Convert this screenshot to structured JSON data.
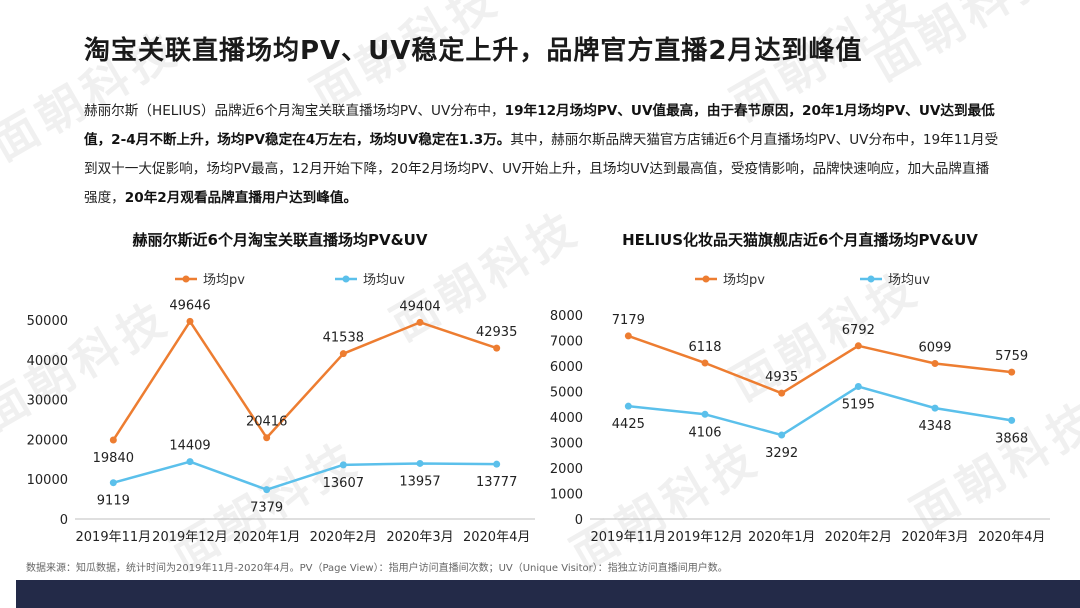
{
  "title": "淘宝关联直播场均PV、UV稳定上升，品牌官方直播2月达到峰值",
  "description": {
    "p1": "赫丽尔斯（HELIUS）品牌近6个月淘宝关联直播场均PV、UV分布中，",
    "b1": "19年12月场均PV、UV值最高，由于春节原因，20年1月场均PV、UV达到最低值，2-4月不断上升，场均PV稳定在4万左右，场均UV稳定在1.3万。",
    "p2": "其中，赫丽尔斯品牌天猫官方店铺近6个月直播场均PV、UV分布中，19年11月受到双十一大促影响，场均PV最高，12月开始下降，20年2月场均PV、UV开始上升，且场均UV达到最高值，受疫情影响，品牌快速响应，加大品牌直播强度，",
    "b2": "20年2月观看品牌直播用户达到峰值。"
  },
  "watermark": "面朝科技",
  "source": "数据来源：知瓜数据，统计时间为2019年11月-2020年4月。PV（Page View）：指用户访问直播间次数；UV（Unique Visitor）：指独立访问直播间用户数。",
  "colors": {
    "pv": "#ED7D31",
    "uv": "#5BC0EB",
    "axis": "#bfbfbf",
    "footer": "#232a48"
  },
  "chart_data": [
    {
      "type": "line",
      "title": "赫丽尔斯近6个月淘宝关联直播场均PV&UV",
      "categories": [
        "2019年11月",
        "2019年12月",
        "2020年1月",
        "2020年2月",
        "2020年3月",
        "2020年4月"
      ],
      "series": [
        {
          "name": "场均pv",
          "values": [
            19840,
            49646,
            20416,
            41538,
            49404,
            42935
          ]
        },
        {
          "name": "场均uv",
          "values": [
            9119,
            14409,
            7379,
            13607,
            13957,
            13777
          ]
        }
      ],
      "ylim": [
        0,
        50000
      ],
      "yticks": [
        0,
        10000,
        20000,
        30000,
        40000,
        50000
      ],
      "grid": false,
      "legend": "top"
    },
    {
      "type": "line",
      "title": "HELIUS化妆品天猫旗舰店近6个月直播场均PV&UV",
      "categories": [
        "2019年11月",
        "2019年12月",
        "2020年1月",
        "2020年2月",
        "2020年3月",
        "2020年4月"
      ],
      "series": [
        {
          "name": "场均pv",
          "values": [
            7179,
            6118,
            4935,
            6792,
            6099,
            5759
          ]
        },
        {
          "name": "场均uv",
          "values": [
            4425,
            4106,
            3292,
            5195,
            4348,
            3868
          ]
        }
      ],
      "ylim": [
        0,
        8000
      ],
      "yticks": [
        0,
        1000,
        2000,
        3000,
        4000,
        5000,
        6000,
        7000,
        8000
      ],
      "grid": false,
      "legend": "top"
    }
  ]
}
